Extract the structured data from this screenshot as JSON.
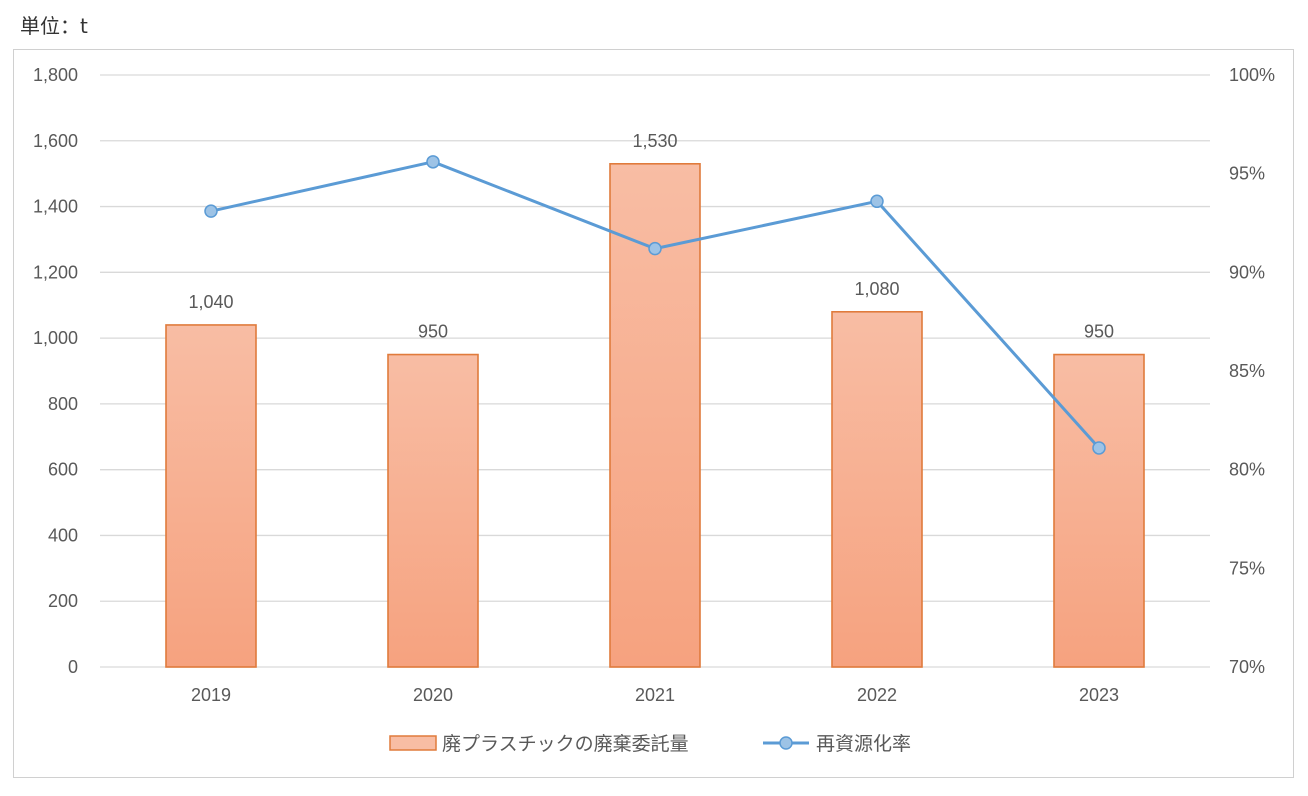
{
  "unit_label": "単位：t",
  "colors": {
    "bar_fill_top": "#f8bda4",
    "bar_fill_bottom": "#f6a27f",
    "bar_stroke": "#e07b3c",
    "line": "#5b9bd5",
    "marker_fill": "#9dc3e6",
    "grid": "#d9d9d9",
    "text": "#595959"
  },
  "chart_data": {
    "type": "bar",
    "categories": [
      "2019",
      "2020",
      "2021",
      "2022",
      "2023"
    ],
    "series": [
      {
        "name": "廃プラスチックの廃棄委託量",
        "type": "bar",
        "axis": "left",
        "values": [
          1040,
          950,
          1530,
          1080,
          950
        ],
        "labels": [
          "1,040",
          "950",
          "1,530",
          "1,080",
          "950"
        ]
      },
      {
        "name": "再資源化率",
        "type": "line",
        "axis": "right",
        "values": [
          93.1,
          95.6,
          91.2,
          93.6,
          81.1
        ]
      }
    ],
    "left_axis": {
      "range": [
        0,
        1800
      ],
      "ticks": [
        0,
        200,
        400,
        600,
        800,
        1000,
        1200,
        1400,
        1600,
        1800
      ],
      "tick_labels": [
        "0",
        "200",
        "400",
        "600",
        "800",
        "1,000",
        "1,200",
        "1,400",
        "1,600",
        "1,800"
      ]
    },
    "right_axis": {
      "range": [
        70,
        100
      ],
      "ticks": [
        70,
        75,
        80,
        85,
        90,
        95,
        100
      ],
      "tick_labels": [
        "70%",
        "75%",
        "80%",
        "85%",
        "90%",
        "95%",
        "100%"
      ]
    },
    "grid": true,
    "legend_position": "bottom"
  }
}
